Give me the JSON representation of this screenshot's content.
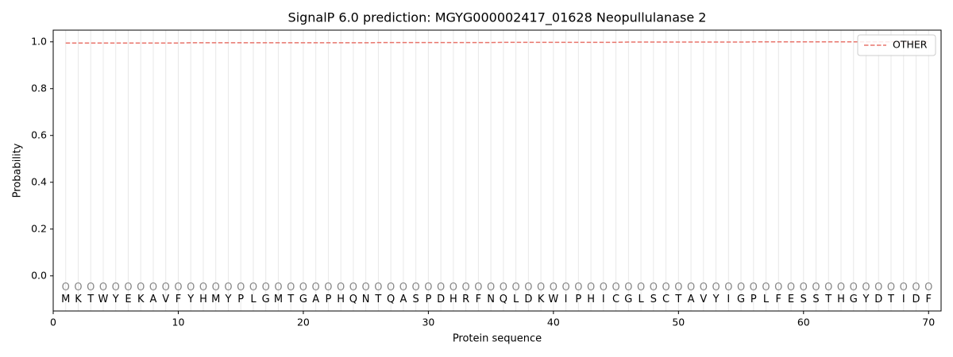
{
  "chart_data": {
    "type": "line",
    "title": "SignalP 6.0 prediction: MGYG000002417_01628 Neopullulanase 2",
    "x_label": "Protein sequence",
    "y_label": "Probability",
    "x": [
      1,
      2,
      3,
      4,
      5,
      6,
      7,
      8,
      9,
      10,
      11,
      12,
      13,
      14,
      15,
      16,
      17,
      18,
      19,
      20,
      21,
      22,
      23,
      24,
      25,
      26,
      27,
      28,
      29,
      30,
      31,
      32,
      33,
      34,
      35,
      36,
      37,
      38,
      39,
      40,
      41,
      42,
      43,
      44,
      45,
      46,
      47,
      48,
      49,
      50,
      51,
      52,
      53,
      54,
      55,
      56,
      57,
      58,
      59,
      60,
      61,
      62,
      63,
      64,
      65,
      66,
      67,
      68,
      69,
      70
    ],
    "residues": [
      "M",
      "K",
      "T",
      "W",
      "Y",
      "E",
      "K",
      "A",
      "V",
      "F",
      "Y",
      "H",
      "M",
      "Y",
      "P",
      "L",
      "G",
      "M",
      "T",
      "G",
      "A",
      "P",
      "H",
      "Q",
      "N",
      "T",
      "Q",
      "A",
      "S",
      "P",
      "D",
      "H",
      "R",
      "F",
      "N",
      "Q",
      "L",
      "D",
      "K",
      "W",
      "I",
      "P",
      "H",
      "I",
      "C",
      "G",
      "L",
      "S",
      "C",
      "T",
      "A",
      "V",
      "Y",
      "I",
      "G",
      "P",
      "L",
      "F",
      "E",
      "S",
      "S",
      "T",
      "H",
      "G",
      "Y",
      "D",
      "T",
      "I",
      "D",
      "F"
    ],
    "state_labels": [
      "O",
      "O",
      "O",
      "O",
      "O",
      "O",
      "O",
      "O",
      "O",
      "O",
      "O",
      "O",
      "O",
      "O",
      "O",
      "O",
      "O",
      "O",
      "O",
      "O",
      "O",
      "O",
      "O",
      "O",
      "O",
      "O",
      "O",
      "O",
      "O",
      "O",
      "O",
      "O",
      "O",
      "O",
      "O",
      "O",
      "O",
      "O",
      "O",
      "O",
      "O",
      "O",
      "O",
      "O",
      "O",
      "O",
      "O",
      "O",
      "O",
      "O",
      "O",
      "O",
      "O",
      "O",
      "O",
      "O",
      "O",
      "O",
      "O",
      "O",
      "O",
      "O",
      "O",
      "O",
      "O",
      "O",
      "O",
      "O",
      "O",
      "O"
    ],
    "series": [
      {
        "name": "OTHER",
        "color": "#e8746b",
        "dash": "dashed",
        "values": [
          0.995,
          0.995,
          0.995,
          0.995,
          0.995,
          0.995,
          0.995,
          0.995,
          0.995,
          0.995,
          0.996,
          0.996,
          0.996,
          0.996,
          0.996,
          0.996,
          0.996,
          0.996,
          0.996,
          0.996,
          0.996,
          0.996,
          0.996,
          0.996,
          0.996,
          0.997,
          0.997,
          0.997,
          0.997,
          0.997,
          0.997,
          0.997,
          0.997,
          0.997,
          0.997,
          0.998,
          0.998,
          0.998,
          0.998,
          0.998,
          0.998,
          0.998,
          0.998,
          0.998,
          0.998,
          0.999,
          0.999,
          0.999,
          0.999,
          0.999,
          0.999,
          0.999,
          0.999,
          0.999,
          0.999,
          1.0,
          1.0,
          1.0,
          1.0,
          1.0,
          1.0,
          1.0,
          1.0,
          1.0,
          1.0,
          1.0,
          1.0,
          1.0,
          1.0,
          1.0
        ]
      }
    ],
    "xlim": [
      0,
      71
    ],
    "xticks": [
      0,
      10,
      20,
      30,
      40,
      50,
      60,
      70
    ],
    "ylim": [
      -0.15,
      1.05
    ],
    "yticks": [
      {
        "value": 0,
        "label": "0.0"
      },
      {
        "value": 0.2,
        "label": "0.2"
      },
      {
        "value": 0.4,
        "label": "0.4"
      },
      {
        "value": 0.6,
        "label": "0.6"
      },
      {
        "value": 0.8,
        "label": "0.8"
      },
      {
        "value": 1,
        "label": "1.0"
      }
    ],
    "legend": "upper right",
    "position_lines": true
  }
}
